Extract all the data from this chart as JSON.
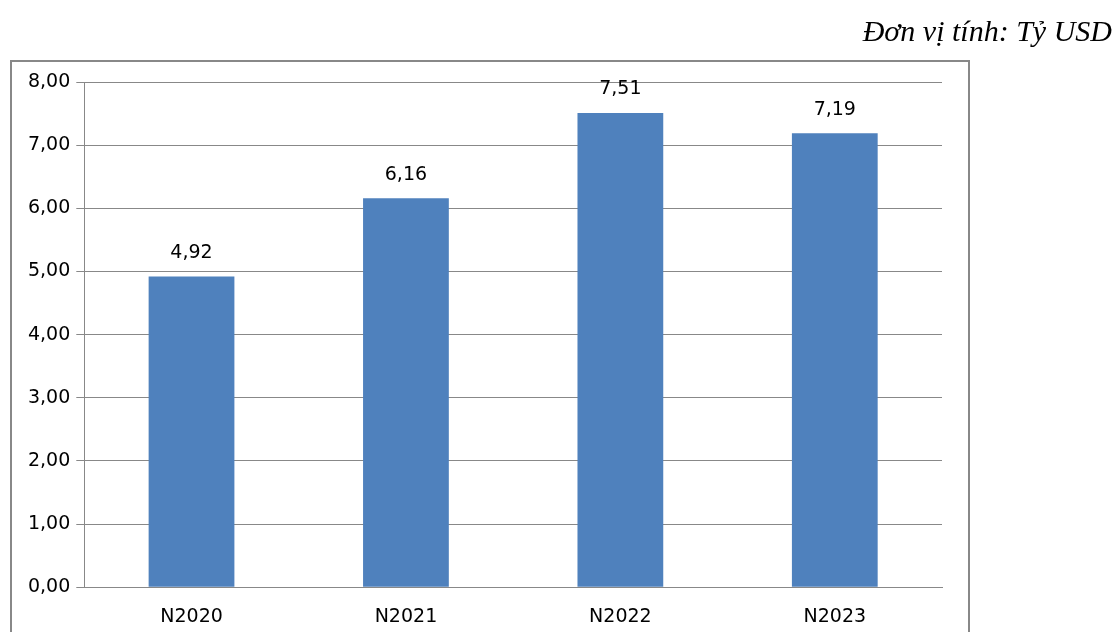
{
  "chart_data": {
    "type": "bar",
    "annotations": [
      "Đơn vị tính: Tỷ USD"
    ],
    "categories": [
      "N2020",
      "N2021",
      "N2022",
      "N2023"
    ],
    "values": [
      4.92,
      6.16,
      7.51,
      7.19
    ],
    "color": "#4f81bd",
    "value_labels": [
      "4,92",
      "6,16",
      "7,51",
      "7,19"
    ],
    "ylim": [
      0,
      8
    ],
    "yticks": [
      {
        "value": 0,
        "label": "0,00"
      },
      {
        "value": 1,
        "label": "1,00"
      },
      {
        "value": 2,
        "label": "2,00"
      },
      {
        "value": 3,
        "label": "3,00"
      },
      {
        "value": 4,
        "label": "4,00"
      },
      {
        "value": 5,
        "label": "5,00"
      },
      {
        "value": 6,
        "label": "6,00"
      },
      {
        "value": 7,
        "label": "7,00"
      },
      {
        "value": 8,
        "label": "8,00"
      }
    ],
    "grid": "y",
    "legend": false
  }
}
